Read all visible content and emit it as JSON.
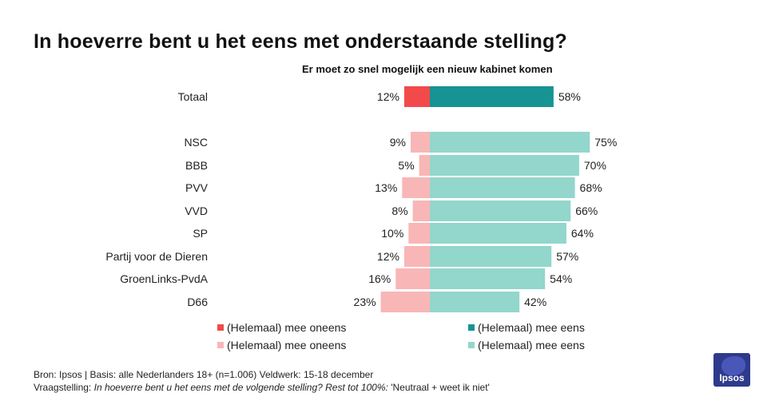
{
  "title": "In hoeverre bent u het eens met onderstaande stelling?",
  "colors": {
    "total_disagree": "#f24a4a",
    "total_agree": "#179393",
    "party_disagree": "#f9b6b6",
    "party_agree": "#92d6cc"
  },
  "legend": [
    {
      "label": "(Helemaal) mee oneens",
      "color": "#f24a4a"
    },
    {
      "label": "(Helemaal) mee eens",
      "color": "#179393"
    },
    {
      "label": "(Helemaal) mee oneens",
      "color": "#f9b6b6"
    },
    {
      "label": "(Helemaal) mee eens",
      "color": "#92d6cc"
    }
  ],
  "footer": {
    "line1": "Bron: Ipsos | Basis: alle Nederlanders  18+ (n=1.006) Veldwerk:  15-18 december",
    "line2_prefix": "Vraagstelling:",
    "line2_italic": "In hoeverre  bent u het eens met de volgende  stelling? Rest tot 100%:",
    "line2_suffix": "'Neutraal + weet ik niet'"
  },
  "logo_text": "Ipsos",
  "chart_data": {
    "type": "bar",
    "orientation": "horizontal-diverging",
    "title": "In hoeverre bent u het eens met onderstaande stelling?",
    "subtitle": "Er moet zo snel mogelijk een nieuw kabinet komen",
    "categories": [
      "Totaal",
      "NSC",
      "BBB",
      "PVV",
      "VVD",
      "SP",
      "Partij voor de Dieren",
      "GroenLinks-PvdA",
      "D66"
    ],
    "series": [
      {
        "name": "(Helemaal) mee oneens",
        "values": [
          12,
          9,
          5,
          13,
          8,
          10,
          12,
          16,
          23
        ]
      },
      {
        "name": "(Helemaal) mee eens",
        "values": [
          58,
          75,
          70,
          68,
          66,
          64,
          57,
          54,
          42
        ]
      }
    ],
    "value_labels": {
      "disagree": [
        "12%",
        "9%",
        "5%",
        "13%",
        "8%",
        "10%",
        "12%",
        "16%",
        "23%"
      ],
      "agree": [
        "58%",
        "75%",
        "70%",
        "68%",
        "66%",
        "64%",
        "57%",
        "54%",
        "42%"
      ]
    },
    "highlight_first_category": true,
    "grid": false,
    "legend_position": "bottom"
  }
}
